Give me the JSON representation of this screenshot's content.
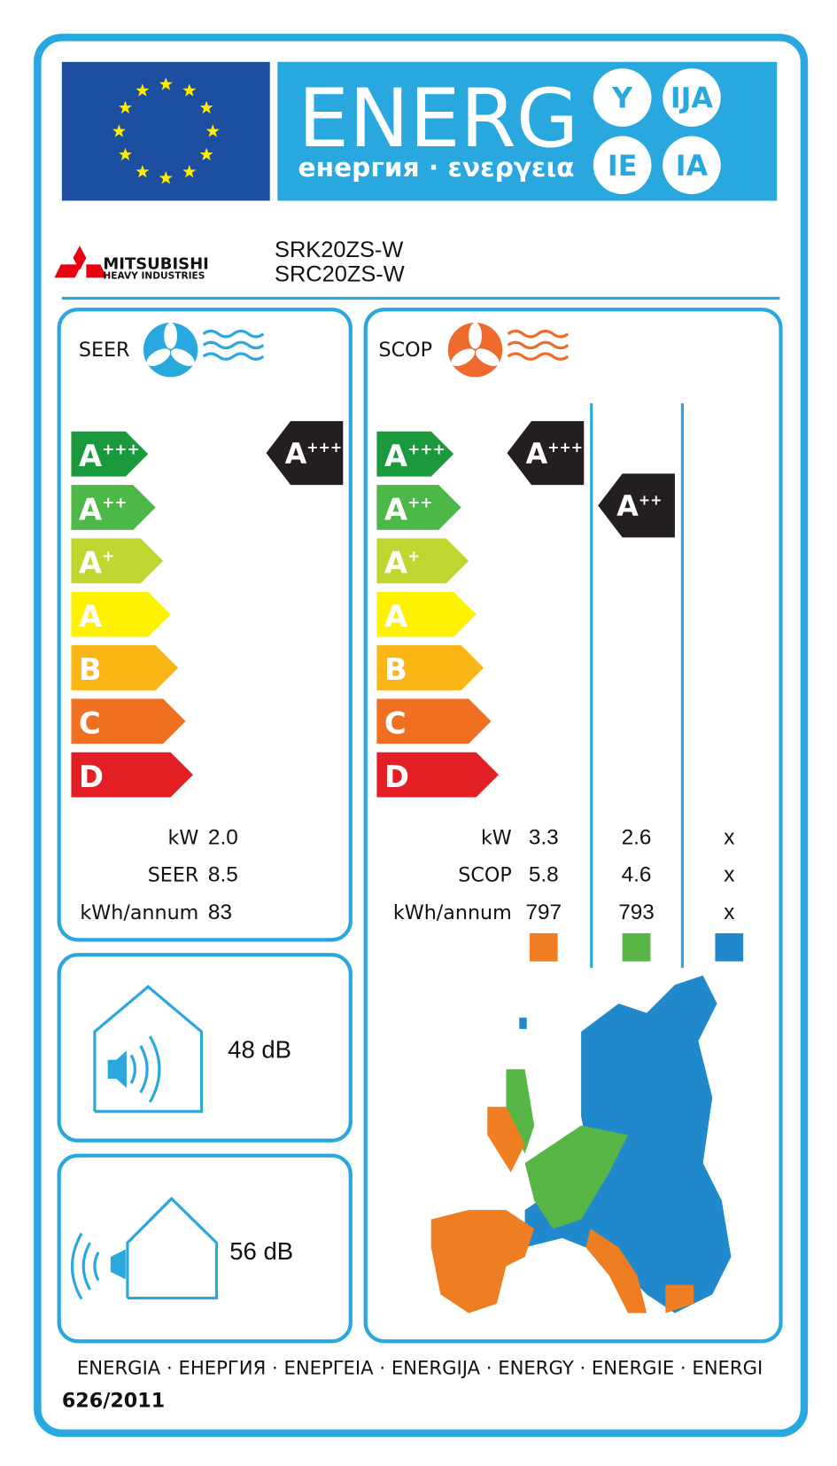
{
  "header": {
    "title": "ENERG",
    "subtitle": "енергия · ενεργεια",
    "suffixes": [
      "Y",
      "IJA",
      "IE",
      "IA"
    ]
  },
  "brand": {
    "name": "MITSUBISHI",
    "division": "HEAVY INDUSTRIES"
  },
  "models": [
    "SRK20ZS-W",
    "SRC20ZS-W"
  ],
  "scale": [
    {
      "letter": "A",
      "sup": "+++",
      "color": "#1a9a3c"
    },
    {
      "letter": "A",
      "sup": "++",
      "color": "#4cb848"
    },
    {
      "letter": "A",
      "sup": "+",
      "color": "#bfd630"
    },
    {
      "letter": "A",
      "color": "#fff200"
    },
    {
      "letter": "B",
      "color": "#fbb616"
    },
    {
      "letter": "C",
      "color": "#f07022"
    },
    {
      "letter": "D",
      "color": "#e31e24"
    }
  ],
  "cooling": {
    "label": "SEER",
    "rating": {
      "letter": "A",
      "sup": "+++"
    },
    "rows": [
      {
        "label": "kW",
        "value": "2.0"
      },
      {
        "label": "SEER",
        "value": "8.5"
      },
      {
        "label": "kWh/annum",
        "value": "83"
      }
    ]
  },
  "heating": {
    "label": "SCOP",
    "ratings": [
      {
        "letter": "A",
        "sup": "+++"
      },
      {
        "letter": "A",
        "sup": "++"
      }
    ],
    "zone_colors": [
      "#ef7d22",
      "#58b647",
      "#2089cb"
    ],
    "rows": [
      {
        "label": "kW",
        "values": [
          "3.3",
          "2.6",
          "x"
        ]
      },
      {
        "label": "SCOP",
        "values": [
          "5.8",
          "4.6",
          "x"
        ]
      },
      {
        "label": "kWh/annum",
        "values": [
          "797",
          "793",
          "x"
        ]
      }
    ]
  },
  "noise": {
    "indoor": "48 dB",
    "outdoor": "56 dB"
  },
  "footer": {
    "languages": "ENERGIA · ЕНЕРГИЯ · ΕΝΕΡΓΕΙΑ · ENERGIJA · ENERGY · ENERGIE · ENERGI",
    "regulation": "626/2011"
  }
}
